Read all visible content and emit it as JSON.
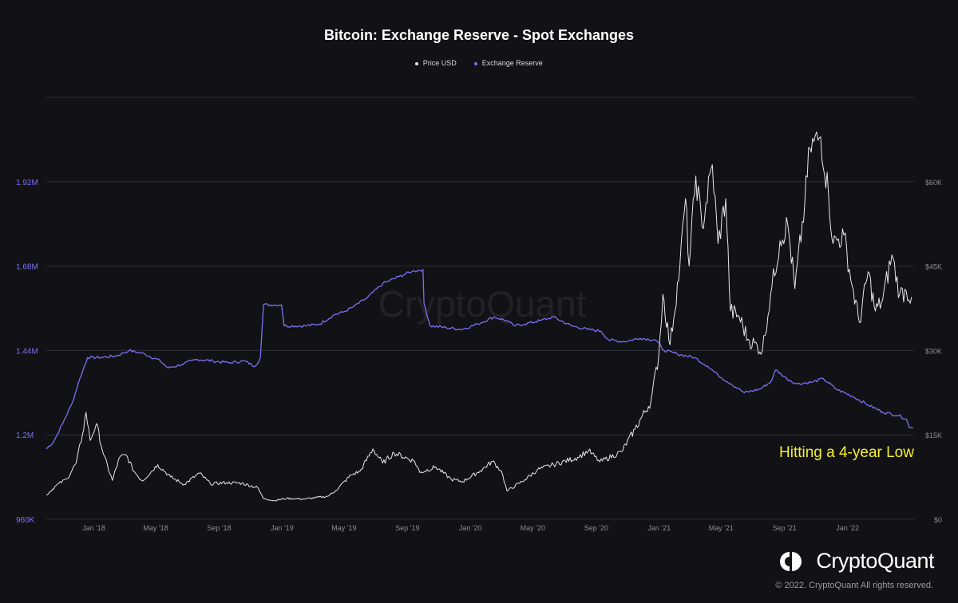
{
  "chart_data": {
    "type": "line",
    "title": "Bitcoin: Exchange Reserve - Spot Exchanges",
    "legend": [
      "Price USD",
      "Exchange Reserve"
    ],
    "legend_placement": "top-center",
    "grid": true,
    "annotation": "Hitting a 4-year Low",
    "x_axis": {
      "range": [
        "2017-10-01",
        "2022-05-10"
      ],
      "ticks": [
        {
          "date": "2018-01-01",
          "label": "Jan '18"
        },
        {
          "date": "2018-05-01",
          "label": "May '18"
        },
        {
          "date": "2018-09-01",
          "label": "Sep '18"
        },
        {
          "date": "2019-01-01",
          "label": "Jan '19"
        },
        {
          "date": "2019-05-01",
          "label": "May '19"
        },
        {
          "date": "2019-09-01",
          "label": "Sep '19"
        },
        {
          "date": "2020-01-01",
          "label": "Jan '20"
        },
        {
          "date": "2020-05-01",
          "label": "May '20"
        },
        {
          "date": "2020-09-01",
          "label": "Sep '20"
        },
        {
          "date": "2021-01-01",
          "label": "Jan '21"
        },
        {
          "date": "2021-05-01",
          "label": "May '21"
        },
        {
          "date": "2021-09-01",
          "label": "Sep '21"
        },
        {
          "date": "2022-01-01",
          "label": "Jan '22"
        }
      ]
    },
    "y_left": {
      "name": "Exchange Reserve",
      "range": [
        960000,
        2160000
      ],
      "ticks": [
        {
          "value": 960000,
          "label": "960K"
        },
        {
          "value": 1200000,
          "label": "1.2M"
        },
        {
          "value": 1440000,
          "label": "1.44M"
        },
        {
          "value": 1680000,
          "label": "1.68M"
        },
        {
          "value": 1920000,
          "label": "1.92M"
        }
      ]
    },
    "y_right": {
      "name": "Price USD",
      "range": [
        0,
        75000
      ],
      "ticks": [
        {
          "value": 0,
          "label": "$0"
        },
        {
          "value": 15000,
          "label": "$15K"
        },
        {
          "value": 30000,
          "label": "$30K"
        },
        {
          "value": 45000,
          "label": "$45K"
        },
        {
          "value": 60000,
          "label": "$60K"
        }
      ]
    },
    "series": [
      {
        "name": "Exchange Reserve",
        "axis": "left",
        "color": "#7b6ff0",
        "points": [
          [
            "2017-10-01",
            1160000
          ],
          [
            "2017-10-15",
            1180000
          ],
          [
            "2017-11-01",
            1230000
          ],
          [
            "2017-11-20",
            1290000
          ],
          [
            "2017-12-05",
            1360000
          ],
          [
            "2017-12-20",
            1420000
          ],
          [
            "2018-01-15",
            1420000
          ],
          [
            "2018-02-15",
            1425000
          ],
          [
            "2018-03-10",
            1440000
          ],
          [
            "2018-04-10",
            1430000
          ],
          [
            "2018-05-10",
            1410000
          ],
          [
            "2018-05-25",
            1390000
          ],
          [
            "2018-06-20",
            1400000
          ],
          [
            "2018-07-20",
            1415000
          ],
          [
            "2018-08-20",
            1410000
          ],
          [
            "2018-09-20",
            1405000
          ],
          [
            "2018-10-20",
            1410000
          ],
          [
            "2018-11-10",
            1395000
          ],
          [
            "2018-11-20",
            1420000
          ],
          [
            "2018-11-26",
            1570000
          ],
          [
            "2018-12-31",
            1570000
          ],
          [
            "2019-01-05",
            1510000
          ],
          [
            "2019-02-15",
            1510000
          ],
          [
            "2019-03-15",
            1515000
          ],
          [
            "2019-04-10",
            1540000
          ],
          [
            "2019-05-01",
            1550000
          ],
          [
            "2019-05-20",
            1565000
          ],
          [
            "2019-06-15",
            1590000
          ],
          [
            "2019-07-15",
            1630000
          ],
          [
            "2019-08-15",
            1650000
          ],
          [
            "2019-09-10",
            1665000
          ],
          [
            "2019-10-01",
            1670000
          ],
          [
            "2019-10-03",
            1575000
          ],
          [
            "2019-10-15",
            1510000
          ],
          [
            "2019-11-15",
            1505000
          ],
          [
            "2019-12-15",
            1500000
          ],
          [
            "2020-01-15",
            1515000
          ],
          [
            "2020-02-15",
            1535000
          ],
          [
            "2020-03-12",
            1525000
          ],
          [
            "2020-03-25",
            1510000
          ],
          [
            "2020-04-15",
            1515000
          ],
          [
            "2020-05-15",
            1525000
          ],
          [
            "2020-06-10",
            1535000
          ],
          [
            "2020-07-15",
            1510000
          ],
          [
            "2020-08-15",
            1500000
          ],
          [
            "2020-09-10",
            1495000
          ],
          [
            "2020-09-25",
            1470000
          ],
          [
            "2020-10-25",
            1465000
          ],
          [
            "2020-11-25",
            1475000
          ],
          [
            "2020-12-25",
            1470000
          ],
          [
            "2021-01-10",
            1440000
          ],
          [
            "2021-02-05",
            1430000
          ],
          [
            "2021-03-10",
            1420000
          ],
          [
            "2021-04-05",
            1395000
          ],
          [
            "2021-04-25",
            1370000
          ],
          [
            "2021-05-20",
            1345000
          ],
          [
            "2021-06-15",
            1320000
          ],
          [
            "2021-07-15",
            1330000
          ],
          [
            "2021-08-05",
            1350000
          ],
          [
            "2021-08-15",
            1385000
          ],
          [
            "2021-09-05",
            1360000
          ],
          [
            "2021-09-25",
            1345000
          ],
          [
            "2021-10-25",
            1350000
          ],
          [
            "2021-11-15",
            1360000
          ],
          [
            "2021-12-10",
            1330000
          ],
          [
            "2022-01-10",
            1310000
          ],
          [
            "2022-02-10",
            1285000
          ],
          [
            "2022-03-10",
            1265000
          ],
          [
            "2022-04-10",
            1255000
          ],
          [
            "2022-04-25",
            1245000
          ],
          [
            "2022-05-01",
            1220000
          ],
          [
            "2022-05-08",
            1220000
          ]
        ]
      },
      {
        "name": "Price USD",
        "axis": "right",
        "color": "#e6e6e6",
        "points": [
          [
            "2017-10-01",
            4300
          ],
          [
            "2017-10-20",
            6000
          ],
          [
            "2017-11-10",
            7200
          ],
          [
            "2017-11-28",
            10000
          ],
          [
            "2017-12-10",
            15000
          ],
          [
            "2017-12-17",
            19000
          ],
          [
            "2017-12-25",
            14000
          ],
          [
            "2018-01-06",
            17000
          ],
          [
            "2018-01-20",
            11500
          ],
          [
            "2018-02-06",
            6900
          ],
          [
            "2018-02-20",
            11000
          ],
          [
            "2018-03-05",
            11400
          ],
          [
            "2018-03-20",
            8500
          ],
          [
            "2018-04-05",
            6800
          ],
          [
            "2018-05-05",
            9700
          ],
          [
            "2018-05-30",
            7500
          ],
          [
            "2018-06-25",
            6200
          ],
          [
            "2018-07-25",
            8200
          ],
          [
            "2018-08-15",
            6300
          ],
          [
            "2018-09-15",
            6500
          ],
          [
            "2018-10-15",
            6400
          ],
          [
            "2018-11-15",
            5600
          ],
          [
            "2018-11-25",
            3800
          ],
          [
            "2018-12-15",
            3300
          ],
          [
            "2019-01-10",
            3700
          ],
          [
            "2019-02-15",
            3600
          ],
          [
            "2019-03-31",
            4100
          ],
          [
            "2019-04-15",
            5100
          ],
          [
            "2019-05-15",
            7900
          ],
          [
            "2019-06-01",
            8500
          ],
          [
            "2019-06-26",
            12500
          ],
          [
            "2019-07-15",
            10000
          ],
          [
            "2019-08-06",
            11800
          ],
          [
            "2019-09-15",
            10300
          ],
          [
            "2019-09-25",
            8300
          ],
          [
            "2019-10-26",
            9300
          ],
          [
            "2019-11-25",
            7100
          ],
          [
            "2019-12-17",
            6700
          ],
          [
            "2020-01-20",
            8600
          ],
          [
            "2020-02-13",
            10300
          ],
          [
            "2020-03-01",
            8600
          ],
          [
            "2020-03-12",
            5000
          ],
          [
            "2020-04-15",
            7000
          ],
          [
            "2020-05-10",
            8800
          ],
          [
            "2020-06-10",
            9700
          ],
          [
            "2020-07-27",
            11000
          ],
          [
            "2020-08-17",
            12200
          ],
          [
            "2020-09-08",
            10200
          ],
          [
            "2020-10-20",
            12000
          ],
          [
            "2020-11-15",
            16000
          ],
          [
            "2020-12-16",
            21000
          ],
          [
            "2020-12-31",
            29000
          ],
          [
            "2021-01-08",
            40000
          ],
          [
            "2021-01-22",
            31000
          ],
          [
            "2021-02-10",
            45000
          ],
          [
            "2021-02-21",
            57000
          ],
          [
            "2021-02-28",
            45000
          ],
          [
            "2021-03-13",
            61000
          ],
          [
            "2021-03-25",
            52000
          ],
          [
            "2021-04-14",
            63000
          ],
          [
            "2021-04-25",
            49000
          ],
          [
            "2021-05-10",
            57000
          ],
          [
            "2021-05-19",
            37000
          ],
          [
            "2021-06-05",
            36000
          ],
          [
            "2021-06-22",
            32000
          ],
          [
            "2021-07-20",
            30000
          ],
          [
            "2021-08-05",
            40000
          ],
          [
            "2021-08-23",
            49500
          ],
          [
            "2021-09-07",
            52500
          ],
          [
            "2021-09-21",
            41000
          ],
          [
            "2021-10-10",
            56000
          ],
          [
            "2021-10-20",
            66000
          ],
          [
            "2021-11-10",
            68000
          ],
          [
            "2021-11-25",
            58000
          ],
          [
            "2021-12-04",
            49000
          ],
          [
            "2021-12-25",
            50500
          ],
          [
            "2022-01-10",
            41500
          ],
          [
            "2022-01-24",
            35000
          ],
          [
            "2022-02-10",
            44000
          ],
          [
            "2022-02-24",
            37000
          ],
          [
            "2022-03-10",
            39000
          ],
          [
            "2022-03-28",
            47000
          ],
          [
            "2022-04-12",
            40000
          ],
          [
            "2022-04-25",
            40500
          ],
          [
            "2022-05-05",
            39500
          ]
        ]
      }
    ]
  },
  "branding": {
    "logo_text": "CryptoQuant",
    "copyright": "© 2022. CryptoQuant All rights reserved.",
    "watermark": "CryptoQuant"
  },
  "colors": {
    "background": "#121216",
    "grid": "#2c2c34",
    "reserve_line": "#7b6ff0",
    "price_line": "#e6e6e6",
    "left_axis_text": "#7b6ff0",
    "right_axis_text": "#8a8a92",
    "annotation": "#f4f030"
  }
}
